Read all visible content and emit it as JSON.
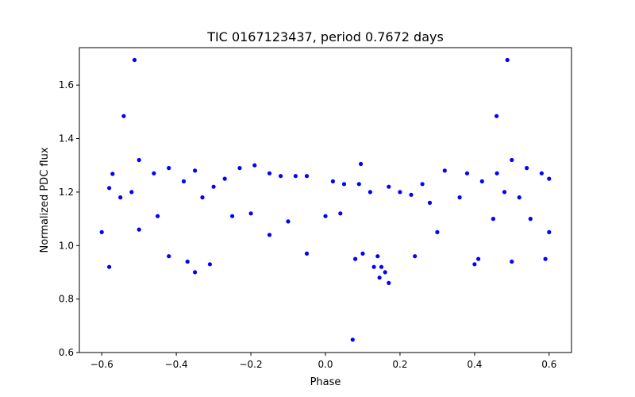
{
  "chart_data": {
    "type": "scatter",
    "title": "TIC 0167123437, period 0.7672 days",
    "xlabel": "Phase",
    "ylabel": "Normalized PDC flux",
    "xlim": [
      -0.66,
      0.66
    ],
    "ylim": [
      0.6,
      1.74
    ],
    "xticks": [
      -0.6,
      -0.4,
      -0.2,
      0.0,
      0.2,
      0.4,
      0.6
    ],
    "xtick_labels": [
      "−0.6",
      "−0.4",
      "−0.2",
      "0.0",
      "0.2",
      "0.4",
      "0.6"
    ],
    "yticks": [
      0.6,
      0.8,
      1.0,
      1.2,
      1.4,
      1.6
    ],
    "ytick_labels": [
      "0.6",
      "0.8",
      "1.0",
      "1.2",
      "1.4",
      "1.6"
    ],
    "grid": false,
    "legend": "none",
    "marker_color": "#0000ff",
    "series": [
      {
        "points": [
          [
            -0.571,
            1.268
          ],
          [
            -0.58,
            1.215
          ],
          [
            -0.512,
            1.694
          ],
          [
            0.488,
            1.694
          ],
          [
            -0.541,
            1.484
          ],
          [
            0.459,
            1.484
          ],
          [
            0.073,
            0.648
          ],
          [
            0.095,
            1.305
          ],
          [
            -0.5,
            1.32
          ],
          [
            0.5,
            1.32
          ],
          [
            -0.15,
            1.27
          ],
          [
            -0.12,
            1.26
          ],
          [
            -0.08,
            1.26
          ],
          [
            -0.05,
            1.26
          ],
          [
            -0.19,
            1.3
          ],
          [
            -0.23,
            1.29
          ],
          [
            -0.27,
            1.25
          ],
          [
            -0.35,
            1.28
          ],
          [
            -0.38,
            1.24
          ],
          [
            -0.42,
            1.29
          ],
          [
            -0.46,
            1.27
          ],
          [
            0.32,
            1.28
          ],
          [
            0.38,
            1.27
          ],
          [
            0.42,
            1.24
          ],
          [
            0.46,
            1.27
          ],
          [
            0.54,
            1.29
          ],
          [
            0.58,
            1.27
          ],
          [
            0.6,
            1.25
          ],
          [
            0.02,
            1.24
          ],
          [
            0.05,
            1.23
          ],
          [
            0.09,
            1.23
          ],
          [
            0.12,
            1.2
          ],
          [
            0.17,
            1.22
          ],
          [
            0.2,
            1.2
          ],
          [
            0.23,
            1.19
          ],
          [
            0.26,
            1.23
          ],
          [
            -0.3,
            1.22
          ],
          [
            -0.33,
            1.18
          ],
          [
            0.28,
            1.16
          ],
          [
            0.36,
            1.18
          ],
          [
            -0.55,
            1.18
          ],
          [
            -0.52,
            1.2
          ],
          [
            0.48,
            1.2
          ],
          [
            0.52,
            1.18
          ],
          [
            -0.25,
            1.11
          ],
          [
            -0.2,
            1.12
          ],
          [
            -0.1,
            1.09
          ],
          [
            0.0,
            1.11
          ],
          [
            0.04,
            1.12
          ],
          [
            -0.45,
            1.11
          ],
          [
            0.45,
            1.1
          ],
          [
            0.55,
            1.1
          ],
          [
            0.14,
            0.96
          ],
          [
            0.15,
            0.92
          ],
          [
            0.16,
            0.9
          ],
          [
            0.13,
            0.92
          ],
          [
            0.17,
            0.86
          ],
          [
            0.145,
            0.88
          ],
          [
            -0.37,
            0.94
          ],
          [
            -0.35,
            0.9
          ],
          [
            -0.42,
            0.96
          ],
          [
            -0.31,
            0.93
          ],
          [
            -0.58,
            0.92
          ],
          [
            0.08,
            0.95
          ],
          [
            0.1,
            0.97
          ],
          [
            0.24,
            0.96
          ],
          [
            0.4,
            0.93
          ],
          [
            0.41,
            0.95
          ],
          [
            -0.05,
            0.97
          ],
          [
            0.5,
            0.94
          ],
          [
            0.59,
            0.95
          ],
          [
            -0.6,
            1.05
          ],
          [
            0.6,
            1.05
          ],
          [
            -0.5,
            1.06
          ],
          [
            0.3,
            1.05
          ],
          [
            -0.15,
            1.04
          ]
        ]
      }
    ]
  }
}
